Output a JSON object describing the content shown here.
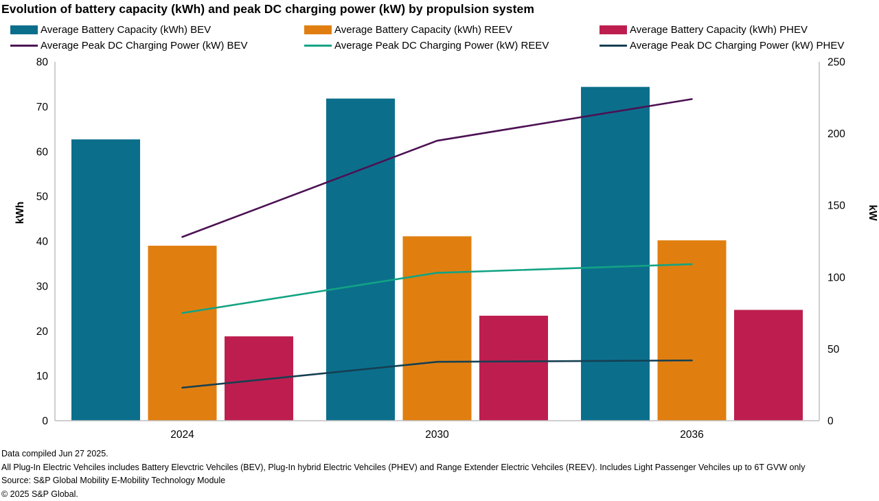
{
  "title": "Evolution of battery capacity (kWh) and peak DC charging power (kW) by propulsion system",
  "legend": {
    "items": [
      {
        "label": "Average Battery Capacity (kWh) BEV",
        "type": "bar",
        "color": "#0b6f8c"
      },
      {
        "label": "Average Battery Capacity (kWh) REEV",
        "type": "bar",
        "color": "#e07f10"
      },
      {
        "label": "Average Battery Capacity (kWh) PHEV",
        "type": "bar",
        "color": "#be1e4f"
      },
      {
        "label": "Average Peak DC Charging Power (kW) BEV",
        "type": "line",
        "color": "#4c1153"
      },
      {
        "label": "Average Peak DC Charging Power (kW) REEV",
        "type": "line",
        "color": "#12a384"
      },
      {
        "label": "Average Peak DC Charging Power (kW) PHEV",
        "type": "line",
        "color": "#153f52"
      }
    ]
  },
  "chart_data": {
    "type": "bar",
    "subtype": "combo bar+line, dual y-axes",
    "categories": [
      "2024",
      "2030",
      "2036"
    ],
    "bar_series": [
      {
        "name": "Average Battery Capacity (kWh) BEV",
        "axis": "left",
        "color": "#0b6f8c",
        "values": [
          62.7,
          71.8,
          74.4
        ]
      },
      {
        "name": "Average Battery Capacity (kWh) REEV",
        "axis": "left",
        "color": "#e07f10",
        "values": [
          39.0,
          41.1,
          40.2
        ]
      },
      {
        "name": "Average Battery Capacity (kWh) PHEV",
        "axis": "left",
        "color": "#be1e4f",
        "values": [
          18.8,
          23.4,
          24.7
        ]
      }
    ],
    "line_series": [
      {
        "name": "Average Peak DC Charging Power (kW) BEV",
        "axis": "right",
        "color": "#4c1153",
        "values": [
          128,
          195,
          224
        ]
      },
      {
        "name": "Average Peak DC Charging Power (kW) REEV",
        "axis": "right",
        "color": "#12a384",
        "values": [
          75,
          103,
          109
        ]
      },
      {
        "name": "Average Peak DC Charging Power (kW) PHEV",
        "axis": "right",
        "color": "#153f52",
        "values": [
          23,
          41,
          42
        ]
      }
    ],
    "left_axis": {
      "label": "kWh",
      "min": 0,
      "max": 80,
      "ticks": [
        0,
        10,
        20,
        30,
        40,
        50,
        60,
        70,
        80
      ]
    },
    "right_axis": {
      "label": "kW",
      "min": 0,
      "max": 250,
      "ticks": [
        0,
        50,
        100,
        150,
        200,
        250
      ]
    },
    "grid": false,
    "legend_position": "top",
    "axis_line_color": "#bfbfbf"
  },
  "footnotes": [
    "Data compiled Jun 27 2025.",
    "All Plug-In Electric Vehciles includes Battery Elevctric Vehciles (BEV), Plug-In hybrid Electric Vehciles (PHEV) and Range Extender Electric Vehciles (REEV). Includes Light Passenger Vehciles up to 6T GVW only",
    "Source: S&P Global Mobility E-Mobility Technology Module",
    "© 2025 S&P Global."
  ]
}
